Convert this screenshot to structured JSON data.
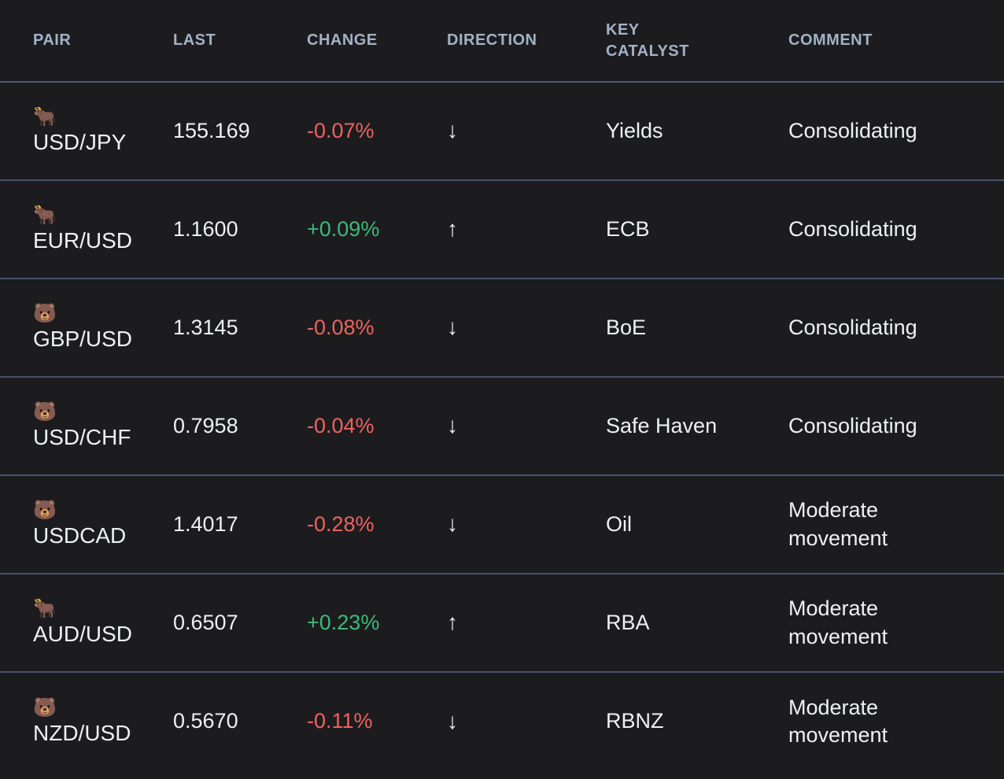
{
  "colors": {
    "background": "#1c1c1f",
    "divider": "#46526a",
    "header_text": "#a3b1c6",
    "body_text": "#eef0f3",
    "positive": "#3cba78",
    "negative": "#ef615e"
  },
  "table": {
    "columns": [
      {
        "key": "pair",
        "label": "PAIR"
      },
      {
        "key": "last",
        "label": "LAST"
      },
      {
        "key": "change",
        "label": "CHANGE"
      },
      {
        "key": "direction",
        "label": "DIRECTION"
      },
      {
        "key": "catalyst",
        "label": "KEY CATALYST"
      },
      {
        "key": "comment",
        "label": "COMMENT"
      }
    ],
    "rows": [
      {
        "emoji": "🐂",
        "sentiment": "bull",
        "pair": "USD/JPY",
        "last": "155.169",
        "change": "-0.07%",
        "trend": "negative",
        "arrow": "↓",
        "catalyst": "Yields",
        "comment": "Consolidating"
      },
      {
        "emoji": "🐂",
        "sentiment": "bull",
        "pair": "EUR/USD",
        "last": "1.1600",
        "change": "+0.09%",
        "trend": "positive",
        "arrow": "↑",
        "catalyst": "ECB",
        "comment": "Consolidating"
      },
      {
        "emoji": "🐻",
        "sentiment": "bear",
        "pair": "GBP/USD",
        "last": "1.3145",
        "change": "-0.08%",
        "trend": "negative",
        "arrow": "↓",
        "catalyst": "BoE",
        "comment": "Consolidating"
      },
      {
        "emoji": "🐻",
        "sentiment": "bear",
        "pair": "USD/CHF",
        "last": "0.7958",
        "change": "-0.04%",
        "trend": "negative",
        "arrow": "↓",
        "catalyst": "Safe Haven",
        "comment": "Consolidating"
      },
      {
        "emoji": "🐻",
        "sentiment": "bear",
        "pair": "USDCAD",
        "last": "1.4017",
        "change": "-0.28%",
        "trend": "negative",
        "arrow": "↓",
        "catalyst": "Oil",
        "comment": "Moderate movement"
      },
      {
        "emoji": "🐂",
        "sentiment": "bull",
        "pair": "AUD/USD",
        "last": "0.6507",
        "change": "+0.23%",
        "trend": "positive",
        "arrow": "↑",
        "catalyst": "RBA",
        "comment": "Moderate movement"
      },
      {
        "emoji": "🐻",
        "sentiment": "bear",
        "pair": "NZD/USD",
        "last": "0.5670",
        "change": "-0.11%",
        "trend": "negative",
        "arrow": "↓",
        "catalyst": "RBNZ",
        "comment": "Moderate movement"
      }
    ]
  }
}
